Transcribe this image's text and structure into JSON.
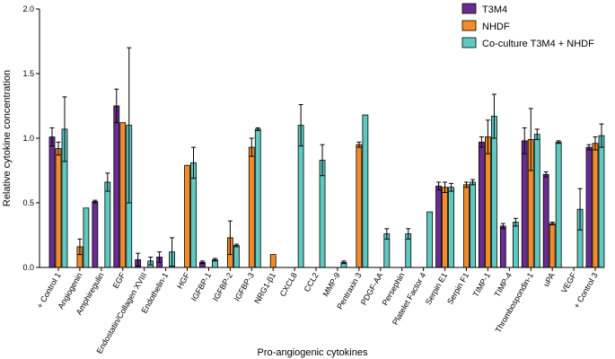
{
  "chart_data": {
    "type": "bar",
    "title": "",
    "xlabel": "Pro-angiogenic cytokines",
    "ylabel": "Relative cytokine concentration",
    "ylim": [
      0,
      2.0
    ],
    "yticks": [
      "0.0",
      "0.5",
      "1.0",
      "1.5",
      "2.0"
    ],
    "grid": false,
    "legend_position": "top-right",
    "categories": [
      "+ Control 1",
      "Angiogenin",
      "Amphiregulin",
      "EGF",
      "Endostatin/Collagen XVIII",
      "Endothelin-1",
      "HGF",
      "IGFBP-1",
      "IGFBP-2",
      "IGFBP-3",
      "NRG1-β1",
      "CXCL8",
      "CCL2",
      "MMP-9",
      "Pentraxin 3",
      "PDGF-AA",
      "Persephin",
      "Platelet Factor 4",
      "Serpin E1",
      "Serpin F1",
      "TIMP-1",
      "TIMP-4",
      "Thrombospondin-1",
      "uPA",
      "VEGF",
      "+ Control 3"
    ],
    "series": [
      {
        "name": "T3M4",
        "color": "#6A2C91",
        "values": [
          1.01,
          0,
          0.51,
          1.25,
          0.06,
          0.08,
          0,
          0.04,
          0,
          0,
          0,
          0,
          0,
          0,
          0,
          0,
          0,
          0,
          0.63,
          0,
          0.97,
          0.32,
          0.98,
          0.72,
          0,
          0.93
        ],
        "errors": [
          0.07,
          0,
          0.01,
          0.13,
          0.05,
          0.04,
          0,
          0.01,
          0,
          0,
          0,
          0,
          0,
          0,
          0,
          0,
          0,
          0,
          0.03,
          0,
          0.04,
          0.02,
          0.1,
          0.02,
          0,
          0.02
        ]
      },
      {
        "name": "NHDF",
        "color": "#F28C28",
        "values": [
          0.92,
          0.16,
          0,
          1.12,
          0,
          0,
          0.79,
          0,
          0.23,
          0.93,
          0.1,
          0,
          0,
          0,
          0.95,
          0,
          0,
          0,
          0.62,
          0.64,
          1.01,
          0,
          0.99,
          0.34,
          0,
          0.96
        ],
        "errors": [
          0.05,
          0.06,
          0,
          0,
          0,
          0,
          0,
          0,
          0.13,
          0.07,
          0,
          0,
          0,
          0,
          0.02,
          0,
          0,
          0,
          0.04,
          0.02,
          0.13,
          0,
          0.24,
          0.01,
          0,
          0.05
        ]
      },
      {
        "name": "Co-culture T3M4 + NHDF",
        "color": "#5EC9C0",
        "values": [
          1.07,
          0.46,
          0.66,
          1.1,
          0.05,
          0.12,
          0.81,
          0.06,
          0.17,
          1.07,
          0,
          1.1,
          0.83,
          0.04,
          1.18,
          0.26,
          0.26,
          0.43,
          0.62,
          0.66,
          1.17,
          0.35,
          1.03,
          0.97,
          0.45,
          1.02
        ],
        "errors": [
          0.25,
          0,
          0.07,
          0.6,
          0.03,
          0.11,
          0.12,
          0.01,
          0.01,
          0.01,
          0,
          0.16,
          0.12,
          0.01,
          0,
          0.04,
          0.04,
          0,
          0.03,
          0.02,
          0.17,
          0.03,
          0.04,
          0.01,
          0.16,
          0.09
        ]
      }
    ]
  }
}
